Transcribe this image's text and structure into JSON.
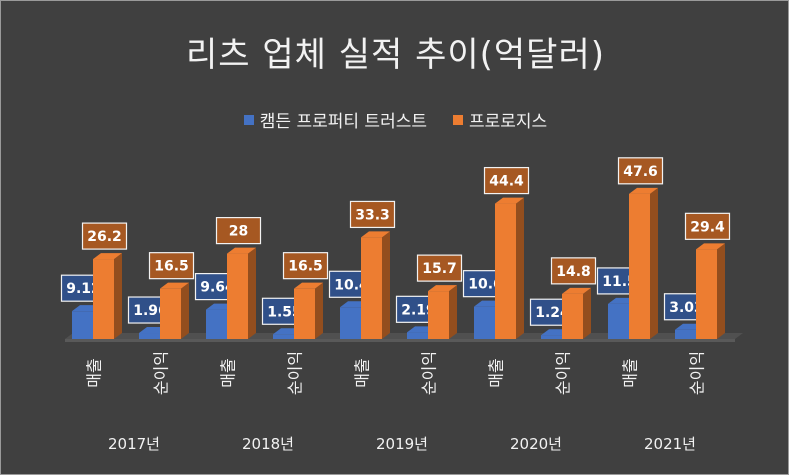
{
  "chart_data": {
    "type": "bar",
    "title": "리츠 업체 실적 추이(억달러)",
    "years": [
      "2017년",
      "2018년",
      "2019년",
      "2020년",
      "2021년"
    ],
    "metrics": [
      "매출",
      "순이익"
    ],
    "categories": [
      "2017년 매출",
      "2017년 순이익",
      "2018년 매출",
      "2018년 순이익",
      "2019년 매출",
      "2019년 순이익",
      "2020년 매출",
      "2020년 순이익",
      "2021년 매출",
      "2021년 순이익"
    ],
    "series": [
      {
        "name": "캠든 프로퍼티 트러스트",
        "color": "#4472c4",
        "values": [
          9.12,
          1.96,
          9.64,
          1.55,
          10.4,
          2.19,
          10.6,
          1.24,
          11.5,
          3.03
        ],
        "labels": [
          "9.12",
          "1.96",
          "9.64",
          "1.55",
          "10.4",
          "2.19",
          "10.6",
          "1.24",
          "11.5",
          "3.03"
        ]
      },
      {
        "name": "프로로지스",
        "color": "#ed7d31",
        "values": [
          26.2,
          16.5,
          28,
          16.5,
          33.3,
          15.7,
          44.4,
          14.8,
          47.6,
          29.4
        ],
        "labels": [
          "26.2",
          "16.5",
          "28",
          "16.5",
          "33.3",
          "15.7",
          "44.4",
          "14.8",
          "47.6",
          "29.4"
        ]
      }
    ],
    "ylim": [
      0,
      50
    ],
    "grid": false,
    "legend_position": "top",
    "style": "3d-column"
  }
}
